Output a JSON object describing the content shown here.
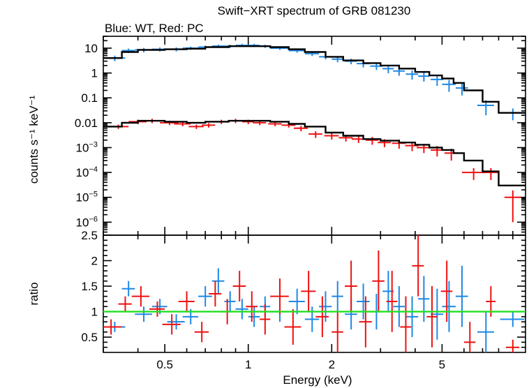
{
  "chart_data": [
    {
      "type": "scatter",
      "title": "Swift−XRT spectrum of GRB 081230",
      "subtitle": "Blue: WT, Red: PC",
      "ylabel": "counts s⁻¹ keV⁻¹",
      "xlabel": "",
      "xscale": "log",
      "yscale": "log",
      "xlim": [
        0.3,
        10
      ],
      "ylim": [
        3e-07,
        30
      ],
      "x_ticks": [
        0.5,
        1,
        2,
        5
      ],
      "y_tick_labels": [
        {
          "value": 10,
          "label": "10"
        },
        {
          "value": 1,
          "label": "1"
        },
        {
          "value": 0.1,
          "label": "0.1"
        },
        {
          "value": 0.01,
          "label": "0.01"
        },
        {
          "value": 0.001,
          "base": "10",
          "exp": "−3"
        },
        {
          "value": 0.0001,
          "base": "10",
          "exp": "−4"
        },
        {
          "value": 1e-05,
          "base": "10",
          "exp": "−5"
        },
        {
          "value": 1e-06,
          "base": "10",
          "exp": "−6"
        }
      ],
      "colors": {
        "WT": "#1e88e5",
        "PC": "#ee1111",
        "model": "#000000"
      },
      "series": [
        {
          "color": "#1e88e5",
          "x": [
            0.33,
            0.37,
            0.42,
            0.48,
            0.55,
            0.62,
            0.7,
            0.78,
            0.86,
            0.95,
            1.05,
            1.15,
            1.3,
            1.5,
            1.7,
            1.9,
            2.1,
            2.35,
            2.6,
            2.9,
            3.2,
            3.5,
            3.9,
            4.3,
            4.8,
            5.3,
            5.9,
            7.2,
            9.0
          ],
          "y": [
            4,
            8,
            8.5,
            9,
            9,
            10,
            11,
            12,
            12,
            13,
            13,
            12,
            10,
            8,
            6,
            4.5,
            3.6,
            3.0,
            2.4,
            1.9,
            1.5,
            1.2,
            0.9,
            0.75,
            0.55,
            0.35,
            0.25,
            0.05,
            0.025
          ],
          "xerr": [
            0.03,
            0.02,
            0.03,
            0.03,
            0.04,
            0.04,
            0.04,
            0.04,
            0.04,
            0.05,
            0.05,
            0.05,
            0.1,
            0.1,
            0.1,
            0.1,
            0.1,
            0.12,
            0.14,
            0.15,
            0.15,
            0.17,
            0.2,
            0.2,
            0.25,
            0.3,
            0.3,
            0.5,
            0.9
          ],
          "yerr_frac": [
            0.25,
            0.2,
            0.2,
            0.18,
            0.18,
            0.15,
            0.15,
            0.15,
            0.15,
            0.15,
            0.15,
            0.15,
            0.15,
            0.18,
            0.2,
            0.22,
            0.25,
            0.25,
            0.3,
            0.3,
            0.35,
            0.35,
            0.4,
            0.4,
            0.45,
            0.5,
            0.5,
            0.6,
            0.5
          ]
        },
        {
          "color": "#ee1111",
          "x": [
            0.34,
            0.4,
            0.45,
            0.52,
            0.58,
            0.65,
            0.72,
            0.8,
            0.9,
            1.0,
            1.1,
            1.25,
            1.4,
            1.55,
            1.75,
            2.0,
            2.25,
            2.5,
            2.8,
            3.1,
            3.5,
            3.9,
            4.3,
            4.8,
            5.4,
            6.5,
            7.5,
            9.0
          ],
          "y": [
            0.007,
            0.011,
            0.012,
            0.01,
            0.009,
            0.007,
            0.008,
            0.011,
            0.012,
            0.011,
            0.01,
            0.009,
            0.008,
            0.006,
            0.0035,
            0.003,
            0.0025,
            0.0022,
            0.002,
            0.0016,
            0.0015,
            0.0012,
            0.001,
            0.0008,
            0.0006,
            0.0001,
            0.0001,
            1e-05
          ],
          "xerr": [
            0.03,
            0.03,
            0.03,
            0.04,
            0.04,
            0.04,
            0.04,
            0.05,
            0.05,
            0.05,
            0.06,
            0.07,
            0.08,
            0.09,
            0.1,
            0.12,
            0.13,
            0.14,
            0.15,
            0.17,
            0.2,
            0.22,
            0.25,
            0.25,
            0.3,
            0.6,
            0.5,
            0.6
          ],
          "yerr_frac": [
            0.2,
            0.2,
            0.2,
            0.2,
            0.2,
            0.2,
            0.2,
            0.2,
            0.2,
            0.2,
            0.2,
            0.2,
            0.2,
            0.25,
            0.3,
            0.3,
            0.3,
            0.3,
            0.35,
            0.35,
            0.4,
            0.4,
            0.4,
            0.45,
            0.5,
            0.5,
            0.5,
            0.9
          ]
        }
      ],
      "model_WT": {
        "edges": [
          0.3,
          0.35,
          0.4,
          0.5,
          0.6,
          0.7,
          0.85,
          1.0,
          1.2,
          1.4,
          1.6,
          1.9,
          2.2,
          2.6,
          3.0,
          3.5,
          4.0,
          4.5,
          5.0,
          5.5,
          6.0,
          7.0,
          8.0,
          10.0
        ],
        "y": [
          4,
          7,
          8.5,
          9,
          9.5,
          11,
          12,
          12,
          11,
          9,
          7,
          4.5,
          3.2,
          2.5,
          2.0,
          1.5,
          1.1,
          0.8,
          0.6,
          0.4,
          0.2,
          0.07,
          0.025
        ]
      },
      "model_PC": {
        "edges": [
          0.3,
          0.35,
          0.4,
          0.5,
          0.6,
          0.7,
          0.85,
          1.0,
          1.2,
          1.4,
          1.6,
          1.9,
          2.2,
          2.6,
          3.0,
          3.5,
          4.0,
          4.5,
          5.0,
          5.5,
          6.0,
          7.0,
          8.0,
          10.0
        ],
        "y": [
          0.007,
          0.01,
          0.012,
          0.011,
          0.01,
          0.011,
          0.012,
          0.012,
          0.011,
          0.009,
          0.007,
          0.004,
          0.003,
          0.0022,
          0.0019,
          0.0016,
          0.0013,
          0.001,
          0.0008,
          0.0006,
          0.0003,
          0.00011,
          3e-05
        ]
      }
    },
    {
      "type": "scatter",
      "ylabel": "ratio",
      "xlabel": "Energy (keV)",
      "xscale": "log",
      "xlim": [
        0.3,
        10
      ],
      "ylim": [
        0.2,
        2.5
      ],
      "x_ticks": [
        0.5,
        1,
        2,
        5
      ],
      "x_tick_labels": [
        "0.5",
        "1",
        "2",
        "5"
      ],
      "y_ticks": [
        0.5,
        1,
        1.5,
        2,
        2.5
      ],
      "y_tick_labels": [
        "0.5",
        "1",
        "1.5",
        "2",
        "2.5"
      ],
      "reference_line": 1,
      "reference_color": "#22dd22",
      "series": [
        {
          "color": "#1e88e5",
          "x": [
            0.33,
            0.37,
            0.42,
            0.48,
            0.55,
            0.62,
            0.7,
            0.78,
            0.86,
            0.95,
            1.05,
            1.15,
            1.3,
            1.5,
            1.7,
            1.9,
            2.1,
            2.35,
            2.6,
            2.9,
            3.2,
            3.5,
            3.9,
            4.3,
            4.8,
            5.3,
            5.9,
            7.2,
            9.0
          ],
          "y": [
            0.7,
            1.45,
            0.95,
            1.1,
            0.8,
            0.9,
            1.3,
            1.6,
            1.2,
            1.05,
            0.9,
            1.1,
            1.0,
            1.2,
            0.85,
            1.1,
            1.3,
            0.95,
            1.2,
            1.0,
            1.4,
            1.1,
            0.9,
            1.25,
            0.95,
            1.1,
            1.3,
            0.6,
            0.85
          ],
          "yerr": [
            0.1,
            0.15,
            0.15,
            0.15,
            0.15,
            0.15,
            0.2,
            0.25,
            0.2,
            0.2,
            0.2,
            0.2,
            0.2,
            0.25,
            0.25,
            0.3,
            0.3,
            0.3,
            0.35,
            0.35,
            0.4,
            0.4,
            0.4,
            0.45,
            0.5,
            0.5,
            0.6,
            0.4,
            0.15
          ]
        },
        {
          "color": "#ee1111",
          "x": [
            0.32,
            0.36,
            0.41,
            0.47,
            0.53,
            0.6,
            0.68,
            0.76,
            0.84,
            0.93,
            1.03,
            1.15,
            1.3,
            1.45,
            1.65,
            1.85,
            2.1,
            2.35,
            2.65,
            2.95,
            3.3,
            3.7,
            4.1,
            4.6,
            5.2,
            6.3,
            7.5,
            9.0
          ],
          "y": [
            0.7,
            1.15,
            1.3,
            1.05,
            0.75,
            1.2,
            0.6,
            1.35,
            1.0,
            1.5,
            1.1,
            0.85,
            1.3,
            0.7,
            1.4,
            0.9,
            0.6,
            1.5,
            0.8,
            1.6,
            1.2,
            0.7,
            1.9,
            0.9,
            1.4,
            0.4,
            1.2,
            0.3
          ],
          "yerr": [
            0.15,
            0.15,
            0.2,
            0.15,
            0.2,
            0.2,
            0.2,
            0.25,
            0.25,
            0.3,
            0.3,
            0.3,
            0.35,
            0.35,
            0.4,
            0.4,
            0.4,
            0.5,
            0.5,
            0.6,
            0.6,
            0.6,
            0.6,
            0.6,
            0.6,
            0.4,
            0.3,
            0.15
          ]
        }
      ]
    }
  ]
}
